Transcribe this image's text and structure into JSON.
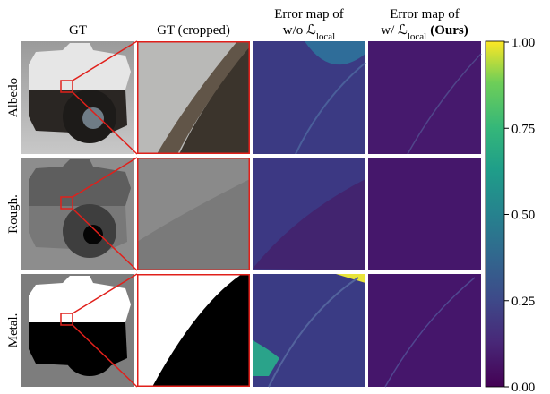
{
  "header": {
    "columns": [
      {
        "lines": [
          {
            "text": "GT"
          }
        ]
      },
      {
        "lines": [
          {
            "text": "GT (cropped)"
          }
        ]
      },
      {
        "lines": [
          {
            "text": "Error map of"
          },
          {
            "text": "w/o ℒ",
            "sub": "local"
          }
        ]
      },
      {
        "lines": [
          {
            "text": "Error map of"
          },
          {
            "text": "w/ ℒ",
            "sub": "local",
            "bold": "(Ours)"
          }
        ]
      }
    ]
  },
  "rows": [
    "Albedo",
    "Rough.",
    "Metal."
  ],
  "colorbar": {
    "range": [
      0,
      1
    ],
    "ticks": [
      {
        "value": 0,
        "label": "0.00"
      },
      {
        "value": 0.25,
        "label": "0.25"
      },
      {
        "value": 0.5,
        "label": "0.50"
      },
      {
        "value": 0.75,
        "label": "0.75"
      },
      {
        "value": 1,
        "label": "1.00"
      }
    ]
  }
}
